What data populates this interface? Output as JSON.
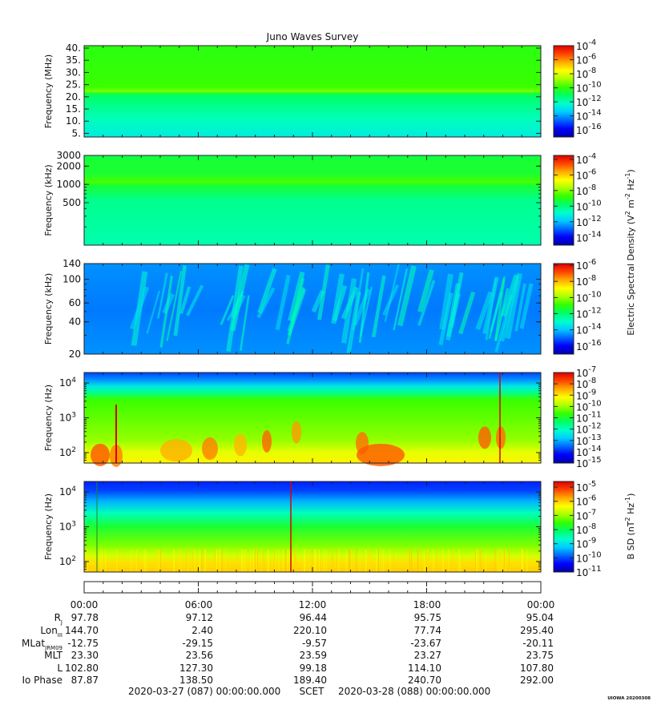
{
  "title": "Juno Waves Survey",
  "stamp": "UIOWA 20200308",
  "colors": {
    "colormap": [
      "#0000a8",
      "#0000ff",
      "#0066ff",
      "#00ccff",
      "#00ffcc",
      "#00ff66",
      "#33ff00",
      "#aaff00",
      "#ffff00",
      "#ffaa00",
      "#ff4400",
      "#dd0000"
    ]
  },
  "chart_data": [
    {
      "type": "heatmap",
      "name": "panel-1",
      "ylabel": "Frequency (MHz)",
      "y_scale": "linear",
      "ylim": [
        3.5,
        41
      ],
      "yticks": [
        5,
        10,
        15,
        20,
        25,
        30,
        35,
        40
      ],
      "yticklabels": [
        "5.",
        "10.",
        "15.",
        "20.",
        "25.",
        "30.",
        "35.",
        "40."
      ],
      "colorbar": {
        "log_range": [
          -17,
          -4
        ],
        "ticks": [
          {
            "exp": -4,
            "label": "-4"
          },
          {
            "exp": -6,
            "label": "-6"
          },
          {
            "exp": -8,
            "label": "-8"
          },
          {
            "exp": -10,
            "label": "-10"
          },
          {
            "exp": -12,
            "label": "-12"
          },
          {
            "exp": -14,
            "label": "-14"
          },
          {
            "exp": -16,
            "label": "-16"
          }
        ]
      }
    },
    {
      "type": "heatmap",
      "name": "panel-2",
      "ylabel": "Frequency (kHz)",
      "y_scale": "log",
      "ylim": [
        100,
        3000
      ],
      "yticks": [
        500,
        1000,
        2000,
        3000
      ],
      "yticklabels": [
        "500",
        "1000",
        "2000",
        "3000"
      ],
      "colorbar": {
        "log_range": [
          -15,
          -3.5
        ],
        "ticks": [
          {
            "exp": -4,
            "label": "-4"
          },
          {
            "exp": -6,
            "label": "-6"
          },
          {
            "exp": -8,
            "label": "-8"
          },
          {
            "exp": -10,
            "label": "-10"
          },
          {
            "exp": -12,
            "label": "-12"
          },
          {
            "exp": -14,
            "label": "-14"
          }
        ]
      }
    },
    {
      "type": "heatmap",
      "name": "panel-3",
      "ylabel": "Frequency (kHz)",
      "y_scale": "log",
      "ylim": [
        20,
        140
      ],
      "yticks": [
        20,
        40,
        60,
        100,
        140
      ],
      "yticklabels": [
        "20",
        "40",
        "60",
        "100",
        "140"
      ],
      "colorbar": {
        "log_range": [
          -17,
          -5.8
        ],
        "ticks": [
          {
            "exp": -6,
            "label": "-6"
          },
          {
            "exp": -8,
            "label": "-8"
          },
          {
            "exp": -10,
            "label": "-10"
          },
          {
            "exp": -12,
            "label": "-12"
          },
          {
            "exp": -14,
            "label": "-14"
          },
          {
            "exp": -16,
            "label": "-16"
          }
        ]
      }
    },
    {
      "type": "heatmap",
      "name": "panel-4",
      "ylabel": "Frequency (Hz)",
      "y_scale": "log",
      "ylim": [
        50,
        20000
      ],
      "yticks": [
        100,
        1000,
        10000
      ],
      "yticklabels": [
        "10",
        "10",
        "10"
      ],
      "ytickexps": [
        "2",
        "3",
        "4"
      ],
      "colorbar": {
        "log_range": [
          -15,
          -7
        ],
        "ticks": [
          {
            "exp": -7,
            "label": "-7"
          },
          {
            "exp": -8,
            "label": "-8"
          },
          {
            "exp": -9,
            "label": "-9"
          },
          {
            "exp": -10,
            "label": "-10"
          },
          {
            "exp": -11,
            "label": "-11"
          },
          {
            "exp": -12,
            "label": "-12"
          },
          {
            "exp": -13,
            "label": "-13"
          },
          {
            "exp": -14,
            "label": "-14"
          },
          {
            "exp": -15,
            "label": "-15"
          }
        ]
      }
    },
    {
      "type": "heatmap",
      "name": "panel-5",
      "ylabel": "Frequency (Hz)",
      "y_scale": "log",
      "ylim": [
        50,
        20000
      ],
      "yticks": [
        100,
        1000,
        10000
      ],
      "yticklabels": [
        "10",
        "10",
        "10"
      ],
      "ytickexps": [
        "2",
        "3",
        "4"
      ],
      "colorbar": {
        "log_range": [
          -11,
          -4.6
        ],
        "ticks": [
          {
            "exp": -5,
            "label": "-5"
          },
          {
            "exp": -6,
            "label": "-6"
          },
          {
            "exp": -7,
            "label": "-7"
          },
          {
            "exp": -8,
            "label": "-8"
          },
          {
            "exp": -9,
            "label": "-9"
          },
          {
            "exp": -10,
            "label": "-10"
          },
          {
            "exp": -11,
            "label": "-11"
          }
        ]
      }
    }
  ],
  "colorbar_labels": {
    "electric": "Electric Spectral Density (V",
    "electric_full": [
      "Electric Spectral Density (V",
      "2",
      " m",
      "-2",
      " Hz",
      "-1",
      ")"
    ],
    "magnetic": [
      "B SD (nT",
      "2",
      " Hz",
      "-1",
      ")"
    ],
    "tick_base": "10"
  },
  "time_axis": {
    "xlim_hours": [
      0,
      24
    ],
    "major_hours": [
      0,
      6,
      12,
      18,
      24
    ],
    "labels": [
      "00:00",
      "06:00",
      "12:00",
      "18:00",
      "00:00"
    ]
  },
  "ephemeris": {
    "rows": [
      {
        "label": "R",
        "sub": "J",
        "values": [
          "97.78",
          "97.12",
          "96.44",
          "95.75",
          "95.04"
        ]
      },
      {
        "label": "Lon",
        "sub": "III",
        "values": [
          "144.70",
          "2.40",
          "220.10",
          "77.74",
          "295.40"
        ]
      },
      {
        "label": "MLat",
        "sub": "JRM09",
        "values": [
          "-12.75",
          "-29.15",
          "-9.57",
          "-23.67",
          "-20.11"
        ]
      },
      {
        "label": "MLT",
        "sub": "",
        "values": [
          "23.30",
          "23.56",
          "23.59",
          "23.27",
          "23.75"
        ]
      },
      {
        "label": "L",
        "sub": "",
        "values": [
          "102.80",
          "127.30",
          "99.18",
          "114.10",
          "107.80"
        ]
      },
      {
        "label": "Io Phase",
        "sub": "",
        "values": [
          "87.87",
          "138.50",
          "189.40",
          "240.70",
          "292.00"
        ]
      }
    ]
  },
  "footer": {
    "start": "2020-03-27 (087) 00:00:00.000",
    "mid": "SCET",
    "end": "2020-03-28 (088) 00:00:00.000"
  }
}
